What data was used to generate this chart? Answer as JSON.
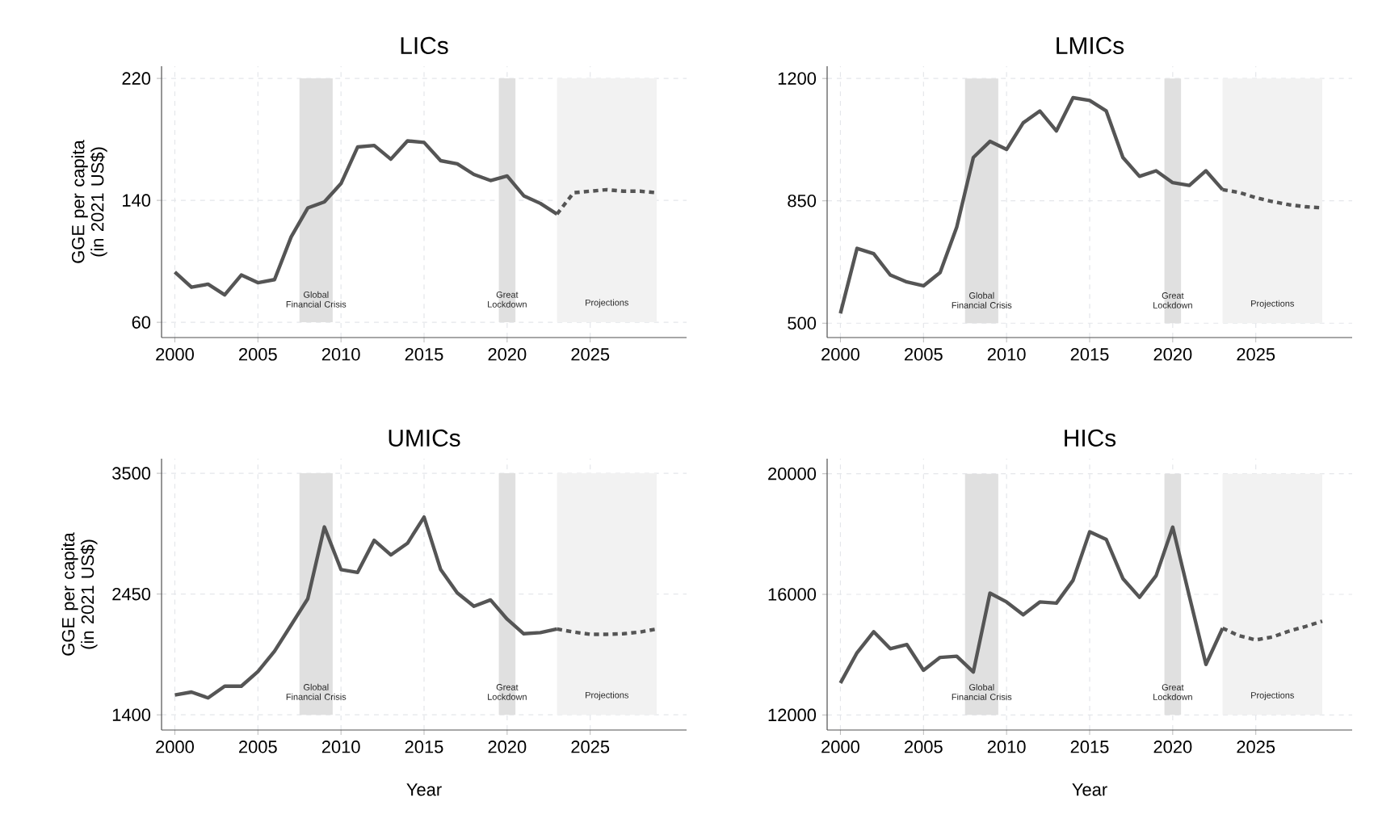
{
  "chart_data": [
    {
      "type": "line",
      "title": "LICs",
      "ylabel": "GGE per capita (in 2021 US$)",
      "xlim": [
        1999.2,
        2030.8
      ],
      "xticks": [
        2000,
        2005,
        2010,
        2015,
        2020,
        2025
      ],
      "ylim": [
        50,
        228
      ],
      "yticks": [
        60,
        140,
        220
      ],
      "grid": true,
      "bands": [
        {
          "axis": "x",
          "from": 2007.5,
          "to": 2009.5,
          "label": "Global Financial Crisis",
          "color": "#e0e0e0"
        },
        {
          "axis": "x",
          "from": 2019.5,
          "to": 2020.5,
          "label": "Great Lockdown",
          "color": "#e0e0e0"
        },
        {
          "axis": "x",
          "from": 2023,
          "to": 2029,
          "label": "Projections",
          "color": "#f2f2f2"
        }
      ],
      "series": [
        {
          "color": "#555555",
          "line_style": "solid",
          "x": [
            2000,
            2001,
            2002,
            2003,
            2004,
            2005,
            2006,
            2007,
            2008,
            2009,
            2010,
            2011,
            2012,
            2013,
            2014,
            2015,
            2016,
            2017,
            2018,
            2019,
            2020,
            2021,
            2022,
            2023
          ],
          "values": [
            93,
            83,
            85,
            78,
            91,
            86,
            88,
            116,
            135,
            139,
            151,
            175,
            176,
            167,
            179,
            178,
            166,
            164,
            157,
            153,
            156,
            143,
            138,
            131
          ]
        },
        {
          "color": "#555555",
          "line_style": "dashed",
          "x": [
            2023,
            2024,
            2025,
            2026,
            2027,
            2028,
            2029
          ],
          "values": [
            131,
            145,
            146,
            147,
            146,
            146,
            145
          ]
        }
      ]
    },
    {
      "type": "line",
      "title": "LMICs",
      "xlim": [
        1999.2,
        2030.8
      ],
      "xticks": [
        2000,
        2005,
        2010,
        2015,
        2020,
        2025
      ],
      "ylim": [
        459,
        1235
      ],
      "yticks": [
        500,
        850,
        1200
      ],
      "grid": true,
      "bands": [
        {
          "axis": "x",
          "from": 2007.5,
          "to": 2009.5,
          "label": "Global Financial Crisis",
          "color": "#e0e0e0"
        },
        {
          "axis": "x",
          "from": 2019.5,
          "to": 2020.5,
          "label": "Great Lockdown",
          "color": "#e0e0e0"
        },
        {
          "axis": "x",
          "from": 2023,
          "to": 2029,
          "label": "Projections",
          "color": "#f2f2f2"
        }
      ],
      "series": [
        {
          "color": "#555555",
          "line_style": "solid",
          "x": [
            2000,
            2001,
            2002,
            2003,
            2004,
            2005,
            2006,
            2007,
            2008,
            2009,
            2010,
            2011,
            2012,
            2013,
            2014,
            2015,
            2016,
            2017,
            2018,
            2019,
            2020,
            2021,
            2022,
            2023
          ],
          "values": [
            528,
            714,
            699,
            638,
            618,
            607,
            645,
            775,
            974,
            1020,
            997,
            1073,
            1107,
            1050,
            1145,
            1137,
            1107,
            974,
            920,
            936,
            902,
            894,
            936,
            882
          ]
        },
        {
          "color": "#555555",
          "line_style": "dashed",
          "x": [
            2023,
            2024,
            2025,
            2026,
            2027,
            2028,
            2029
          ],
          "values": [
            882,
            874,
            859,
            848,
            839,
            833,
            830
          ]
        }
      ]
    },
    {
      "type": "line",
      "title": "UMICs",
      "xlabel": "Year",
      "ylabel": "GGE per capita (in 2021 US$)",
      "xlim": [
        1999.2,
        2030.8
      ],
      "xticks": [
        2000,
        2005,
        2010,
        2015,
        2020,
        2025
      ],
      "ylim": [
        1268,
        3627
      ],
      "yticks": [
        1400,
        2450,
        3500
      ],
      "grid": true,
      "bands": [
        {
          "axis": "x",
          "from": 2007.5,
          "to": 2009.5,
          "label": "Global Financial Crisis",
          "color": "#e0e0e0"
        },
        {
          "axis": "x",
          "from": 2019.5,
          "to": 2020.5,
          "label": "Great Lockdown",
          "color": "#e0e0e0"
        },
        {
          "axis": "x",
          "from": 2023,
          "to": 2029,
          "label": "Projections",
          "color": "#f2f2f2"
        }
      ],
      "series": [
        {
          "color": "#555555",
          "line_style": "solid",
          "x": [
            2000,
            2001,
            2002,
            2003,
            2004,
            2005,
            2006,
            2007,
            2008,
            2009,
            2010,
            2011,
            2012,
            2013,
            2014,
            2015,
            2016,
            2017,
            2018,
            2019,
            2020,
            2021,
            2022,
            2023
          ],
          "values": [
            1573,
            1598,
            1547,
            1649,
            1649,
            1776,
            1953,
            2181,
            2409,
            3033,
            2663,
            2638,
            2917,
            2790,
            2891,
            3119,
            2663,
            2460,
            2344,
            2399,
            2232,
            2105,
            2115,
            2146
          ]
        },
        {
          "color": "#555555",
          "line_style": "dashed",
          "x": [
            2023,
            2024,
            2025,
            2026,
            2027,
            2028,
            2029
          ],
          "values": [
            2146,
            2120,
            2100,
            2100,
            2105,
            2120,
            2146
          ]
        }
      ]
    },
    {
      "type": "line",
      "title": "HICs",
      "xlabel": "Year",
      "xlim": [
        1999.2,
        2030.8
      ],
      "xticks": [
        2000,
        2005,
        2010,
        2015,
        2020,
        2025
      ],
      "ylim": [
        11500,
        20500
      ],
      "yticks": [
        12000,
        16000,
        20000
      ],
      "grid": true,
      "bands": [
        {
          "axis": "x",
          "from": 2007.5,
          "to": 2009.5,
          "label": "Global Financial Crisis",
          "color": "#e0e0e0"
        },
        {
          "axis": "x",
          "from": 2019.5,
          "to": 2020.5,
          "label": "Great Lockdown",
          "color": "#e0e0e0"
        },
        {
          "axis": "x",
          "from": 2023,
          "to": 2029,
          "label": "Projections",
          "color": "#f2f2f2"
        }
      ],
      "series": [
        {
          "color": "#555555",
          "line_style": "solid",
          "x": [
            2000,
            2001,
            2002,
            2003,
            2004,
            2005,
            2006,
            2007,
            2008,
            2009,
            2010,
            2011,
            2012,
            2013,
            2014,
            2015,
            2016,
            2017,
            2018,
            2019,
            2020,
            2021,
            2022,
            2023
          ],
          "values": [
            13056,
            14063,
            14760,
            14198,
            14334,
            13482,
            13908,
            13947,
            13424,
            16039,
            15748,
            15322,
            15748,
            15709,
            16465,
            18073,
            17821,
            16523,
            15903,
            16620,
            18228,
            15942,
            13676,
            14876
          ]
        },
        {
          "color": "#555555",
          "line_style": "dashed",
          "x": [
            2023,
            2024,
            2025,
            2026,
            2027,
            2028,
            2029
          ],
          "values": [
            14876,
            14625,
            14489,
            14586,
            14780,
            14935,
            15110
          ]
        }
      ]
    }
  ]
}
